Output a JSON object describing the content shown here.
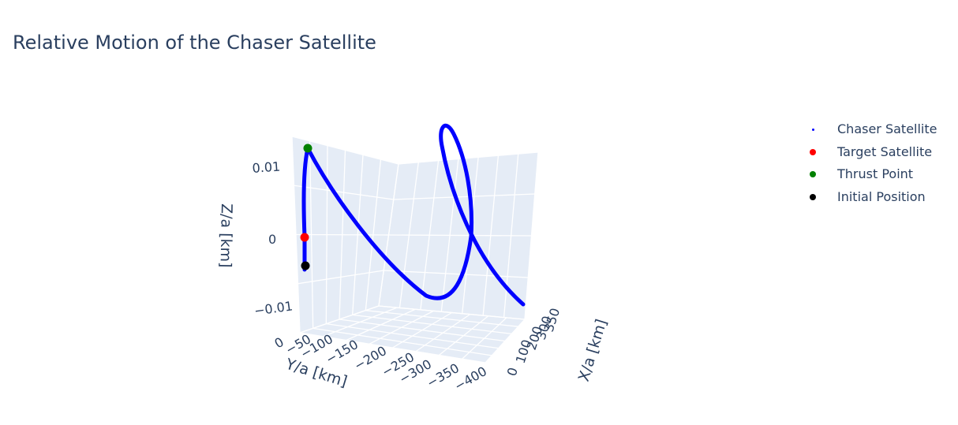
{
  "chart_data": {
    "type": "scatter3d",
    "title": "Relative Motion of the Chaser Satellite",
    "axes": {
      "x": {
        "label": "X/a [km]",
        "tick_labels": [
          "0",
          "100",
          "200",
          "300",
          "350"
        ]
      },
      "y": {
        "label": "Y/a [km]",
        "tick_labels": [
          "0",
          "−50",
          "−100",
          "−150",
          "−200",
          "−250",
          "−300",
          "−350",
          "−400"
        ]
      },
      "z": {
        "label": "Z/a [km]",
        "tick_labels": [
          "0.01",
          "0",
          "−0.01"
        ]
      }
    },
    "series": [
      {
        "name": "Chaser Satellite",
        "color": "#0000ff",
        "mode": "markers (dense trajectory)"
      },
      {
        "name": "Target Satellite",
        "color": "#ff0000",
        "point": {
          "x": 0,
          "y": 0,
          "z": 0
        }
      },
      {
        "name": "Thrust Point",
        "color": "#008000",
        "point": {
          "x": 0,
          "y": -5,
          "z": 0.0125
        }
      },
      {
        "name": "Initial Position",
        "color": "#000000",
        "point": {
          "x": 0,
          "y": -5,
          "z": -0.004
        }
      }
    ],
    "legend_position": "top-right",
    "grid": true,
    "background": "#e5ecf6"
  }
}
